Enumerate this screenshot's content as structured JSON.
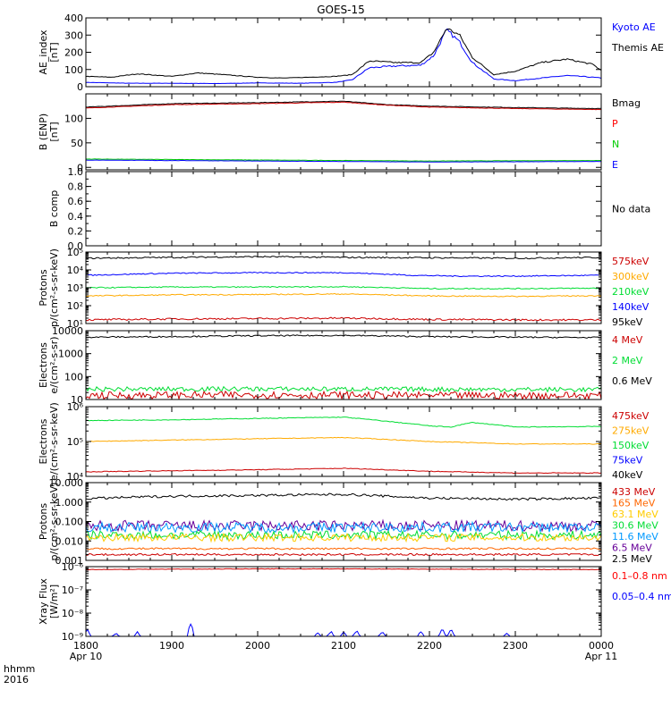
{
  "title": "GOES-15",
  "time_axis": {
    "corner_label_1": "hhmm",
    "corner_label_2": "2016",
    "start_hour": 18,
    "end_hour": 24,
    "ticks": [
      {
        "hour": 18,
        "label": "1800",
        "sub": "Apr 10"
      },
      {
        "hour": 19,
        "label": "1900",
        "sub": ""
      },
      {
        "hour": 20,
        "label": "2000",
        "sub": ""
      },
      {
        "hour": 21,
        "label": "2100",
        "sub": ""
      },
      {
        "hour": 22,
        "label": "2200",
        "sub": ""
      },
      {
        "hour": 23,
        "label": "2300",
        "sub": ""
      },
      {
        "hour": 24,
        "label": "0000",
        "sub": "Apr 11"
      }
    ]
  },
  "chart_data": [
    {
      "type": "line",
      "id": "ae",
      "ylabel": [
        "AE_index",
        "[nT]"
      ],
      "scale": "linear",
      "ylim": [
        0,
        400
      ],
      "yticks": [
        {
          "v": 0,
          "label": "0"
        },
        {
          "v": 100,
          "label": "100"
        },
        {
          "v": 200,
          "label": "200"
        },
        {
          "v": 300,
          "label": "300"
        },
        {
          "v": 400,
          "label": "400"
        }
      ],
      "legend": [
        {
          "text": "Kyoto AE",
          "color": "#0000ff"
        },
        {
          "text": "Themis AE",
          "color": "#000000"
        }
      ],
      "series": [
        {
          "name": "Kyoto AE",
          "color": "#0000ff",
          "jitter": 0.04,
          "x": [
            18.0,
            18.5,
            19.0,
            19.5,
            20.0,
            20.5,
            20.9,
            21.1,
            21.3,
            21.6,
            21.9,
            22.05,
            22.2,
            22.35,
            22.5,
            22.75,
            23.0,
            23.3,
            23.6,
            23.9,
            24.0
          ],
          "y": [
            25,
            20,
            20,
            18,
            22,
            20,
            25,
            40,
            110,
            120,
            125,
            180,
            330,
            260,
            140,
            45,
            35,
            50,
            65,
            55,
            50
          ]
        },
        {
          "name": "Themis AE",
          "color": "#000000",
          "jitter": 0.03,
          "x": [
            18.0,
            18.3,
            18.6,
            19.0,
            19.3,
            19.6,
            20.0,
            20.3,
            20.6,
            20.9,
            21.1,
            21.3,
            21.6,
            21.9,
            22.05,
            22.2,
            22.35,
            22.5,
            22.75,
            23.0,
            23.3,
            23.6,
            23.9,
            24.0
          ],
          "y": [
            60,
            55,
            75,
            60,
            80,
            70,
            55,
            50,
            55,
            60,
            70,
            150,
            140,
            140,
            200,
            340,
            300,
            170,
            70,
            90,
            140,
            160,
            130,
            95
          ]
        }
      ]
    },
    {
      "type": "line",
      "id": "bfield",
      "ylabel": [
        "B (ENP)",
        "[nT]"
      ],
      "scale": "linear",
      "ylim": [
        -5,
        150
      ],
      "yticks": [
        {
          "v": 0,
          "label": "0"
        },
        {
          "v": 50,
          "label": "50"
        },
        {
          "v": 100,
          "label": "100"
        }
      ],
      "legend": [
        {
          "text": "Bmag",
          "color": "#000000"
        },
        {
          "text": "P",
          "color": "#ff0000"
        },
        {
          "text": "N",
          "color": "#00cc00"
        },
        {
          "text": "E",
          "color": "#0000ff"
        }
      ],
      "series": [
        {
          "name": "Bmag",
          "color": "#000000",
          "jitter": 0.004,
          "x": [
            18,
            19,
            20,
            21,
            21.5,
            22,
            23,
            24
          ],
          "y": [
            123,
            130,
            132,
            135,
            128,
            125,
            122,
            120
          ]
        },
        {
          "name": "P",
          "color": "#cc0000",
          "jitter": 0.004,
          "x": [
            18,
            19,
            20,
            21,
            21.5,
            22,
            23,
            24
          ],
          "y": [
            121,
            128,
            130,
            133,
            127,
            123,
            120,
            118
          ]
        },
        {
          "name": "N",
          "color": "#00cc00",
          "jitter": 0.02,
          "x": [
            18,
            20,
            22,
            24
          ],
          "y": [
            17,
            15,
            13,
            14
          ]
        },
        {
          "name": "E",
          "color": "#0000ff",
          "jitter": 0.02,
          "x": [
            18,
            20,
            22,
            24
          ],
          "y": [
            15,
            13,
            11,
            12
          ]
        }
      ]
    },
    {
      "type": "line",
      "id": "bcomp",
      "ylabel": [
        "B comp"
      ],
      "scale": "linear",
      "ylim": [
        0,
        1
      ],
      "yticks": [
        {
          "v": 0,
          "label": "0.0"
        },
        {
          "v": 0.2,
          "label": "0.2"
        },
        {
          "v": 0.4,
          "label": "0.4"
        },
        {
          "v": 0.6,
          "label": "0.6"
        },
        {
          "v": 0.8,
          "label": "0.8"
        },
        {
          "v": 1.0,
          "label": "1.0"
        }
      ],
      "minor_step": 0.1,
      "legend": [
        {
          "text": "No data",
          "color": "#000000"
        }
      ],
      "series": []
    },
    {
      "type": "line",
      "id": "protons_low",
      "ylabel": [
        "Protons",
        "p/(cm²-s-sr-keV)"
      ],
      "scale": "log",
      "ylim": [
        10,
        100000
      ],
      "yticks": [
        {
          "v": 10,
          "label": "10¹"
        },
        {
          "v": 100,
          "label": "10²"
        },
        {
          "v": 1000,
          "label": "10³"
        },
        {
          "v": 10000,
          "label": "10⁴"
        },
        {
          "v": 100000,
          "label": "10⁵"
        }
      ],
      "legend": [
        {
          "text": "575keV",
          "color": "#cc0000"
        },
        {
          "text": "300keV",
          "color": "#ffaa00"
        },
        {
          "text": "210keV",
          "color": "#00dd33"
        },
        {
          "text": "140keV",
          "color": "#0000ff"
        },
        {
          "text": "95keV",
          "color": "#000000"
        }
      ],
      "series": [
        {
          "name": "95keV",
          "color": "#000000",
          "jitter": 0.04,
          "x": [
            18,
            19,
            20,
            21,
            22,
            23,
            24
          ],
          "y": [
            45000,
            50000,
            55000,
            50000,
            48000,
            45000,
            50000
          ]
        },
        {
          "name": "140keV",
          "color": "#0000ff",
          "jitter": 0.03,
          "x": [
            18,
            19,
            20,
            21,
            21.8,
            22.3,
            23,
            24
          ],
          "y": [
            5000,
            6500,
            7000,
            7000,
            5000,
            4500,
            4500,
            5000
          ]
        },
        {
          "name": "210keV",
          "color": "#00dd33",
          "jitter": 0.03,
          "x": [
            18,
            19,
            20,
            21,
            22,
            23,
            24
          ],
          "y": [
            1000,
            1100,
            1100,
            1150,
            900,
            900,
            950
          ]
        },
        {
          "name": "300keV",
          "color": "#ffaa00",
          "jitter": 0.03,
          "x": [
            18,
            19,
            20,
            21,
            22,
            23,
            24
          ],
          "y": [
            350,
            400,
            420,
            450,
            350,
            330,
            360
          ]
        },
        {
          "name": "575keV",
          "color": "#cc0000",
          "jitter": 0.05,
          "x": [
            18,
            19,
            20,
            21,
            22,
            23,
            24
          ],
          "y": [
            16,
            18,
            19,
            20,
            17,
            16,
            16
          ]
        }
      ]
    },
    {
      "type": "line",
      "id": "electrons_mev",
      "ylabel": [
        "Electrons",
        "e/(cm²-s-sr)"
      ],
      "scale": "log",
      "ylim": [
        10,
        10000
      ],
      "yticks": [
        {
          "v": 10,
          "label": "10"
        },
        {
          "v": 100,
          "label": "100"
        },
        {
          "v": 1000,
          "label": "1000"
        },
        {
          "v": 10000,
          "label": "10000"
        }
      ],
      "legend": [
        {
          "text": "4 MeV",
          "color": "#cc0000"
        },
        {
          "text": "2 MeV",
          "color": "#00dd33"
        },
        {
          "text": "0.6 MeV",
          "color": "#000000"
        }
      ],
      "series": [
        {
          "name": "0.6 MeV",
          "color": "#000000",
          "jitter": 0.03,
          "x": [
            18,
            19,
            20,
            21,
            22,
            23,
            24
          ],
          "y": [
            5200,
            5500,
            6000,
            6200,
            5500,
            5200,
            5000
          ]
        },
        {
          "name": "2 MeV",
          "color": "#00dd33",
          "jitter": 0.1,
          "x": [
            18,
            20,
            22,
            24
          ],
          "y": [
            28,
            29,
            28,
            27
          ]
        },
        {
          "name": "4 MeV",
          "color": "#cc0000",
          "jitter": 0.16,
          "x": [
            18,
            20,
            22,
            24
          ],
          "y": [
            15,
            16,
            15,
            15
          ]
        }
      ]
    },
    {
      "type": "line",
      "id": "electrons_kev",
      "ylabel": [
        "Electrons",
        "e/(cm²-s-sr-keV)"
      ],
      "scale": "log",
      "ylim": [
        10000,
        1000000
      ],
      "yticks": [
        {
          "v": 10000,
          "label": "10⁴"
        },
        {
          "v": 100000,
          "label": "10⁵"
        },
        {
          "v": 1000000,
          "label": "10⁶"
        }
      ],
      "legend": [
        {
          "text": "475keV",
          "color": "#cc0000"
        },
        {
          "text": "275keV",
          "color": "#ffaa00"
        },
        {
          "text": "150keV",
          "color": "#00dd33"
        },
        {
          "text": "75keV",
          "color": "#0000ff"
        },
        {
          "text": "40keV",
          "color": "#000000"
        }
      ],
      "series": [
        {
          "name": "150keV",
          "color": "#00dd33",
          "jitter": 0.01,
          "x": [
            18,
            19,
            20,
            21,
            21.5,
            22,
            22.25,
            22.5,
            23,
            24
          ],
          "y": [
            400000,
            420000,
            460000,
            500000,
            380000,
            280000,
            260000,
            350000,
            260000,
            270000
          ]
        },
        {
          "name": "275keV",
          "color": "#ffaa00",
          "jitter": 0.01,
          "x": [
            18,
            19,
            20,
            21,
            22,
            23,
            24
          ],
          "y": [
            100000,
            110000,
            120000,
            130000,
            100000,
            85000,
            85000
          ]
        },
        {
          "name": "475keV",
          "color": "#cc0000",
          "jitter": 0.01,
          "x": [
            18,
            19,
            20,
            21,
            22,
            23,
            24
          ],
          "y": [
            13500,
            14500,
            15500,
            17000,
            14000,
            12500,
            12500
          ]
        }
      ]
    },
    {
      "type": "line",
      "id": "protons_high",
      "ylabel": [
        "Protons",
        "p/(cm²-s-sr-keV)"
      ],
      "scale": "log",
      "ylim": [
        0.001,
        10
      ],
      "yticks": [
        {
          "v": 0.001,
          "label": "0.001"
        },
        {
          "v": 0.01,
          "label": "0.010"
        },
        {
          "v": 0.1,
          "label": "0.100"
        },
        {
          "v": 1,
          "label": "1.000"
        },
        {
          "v": 10,
          "label": "10.000"
        }
      ],
      "legend": [
        {
          "text": "433 MeV",
          "color": "#cc0000"
        },
        {
          "text": "165 MeV",
          "color": "#ff6600"
        },
        {
          "text": "63.1 MeV",
          "color": "#ffcc00"
        },
        {
          "text": "30.6 MeV",
          "color": "#00dd33"
        },
        {
          "text": "11.6 MeV",
          "color": "#0099ff"
        },
        {
          "text": "6.5 MeV",
          "color": "#660099"
        },
        {
          "text": "2.5 MeV",
          "color": "#000000"
        }
      ],
      "series": [
        {
          "name": "2.5 MeV",
          "color": "#000000",
          "jitter": 0.06,
          "x": [
            18,
            19,
            20,
            21,
            21.5,
            22,
            23,
            24
          ],
          "y": [
            1.5,
            2.0,
            2.2,
            2.5,
            2.0,
            1.6,
            1.4,
            1.6
          ]
        },
        {
          "name": "6.5 MeV",
          "color": "#660099",
          "jitter": 0.28,
          "x": [
            18,
            24
          ],
          "y": [
            0.06,
            0.06
          ]
        },
        {
          "name": "11.6 MeV",
          "color": "#0099ff",
          "jitter": 0.26,
          "x": [
            18,
            24
          ],
          "y": [
            0.05,
            0.05
          ]
        },
        {
          "name": "30.6 MeV",
          "color": "#00dd33",
          "jitter": 0.22,
          "x": [
            18,
            24
          ],
          "y": [
            0.02,
            0.02
          ]
        },
        {
          "name": "63.1 MeV",
          "color": "#ffcc00",
          "jitter": 0.2,
          "x": [
            18,
            24
          ],
          "y": [
            0.015,
            0.015
          ]
        },
        {
          "name": "165 MeV",
          "color": "#ff6600",
          "jitter": 0.05,
          "x": [
            18,
            24
          ],
          "y": [
            0.004,
            0.004
          ]
        },
        {
          "name": "433 MeV",
          "color": "#cc0000",
          "jitter": 0.05,
          "x": [
            18,
            24
          ],
          "y": [
            0.002,
            0.002
          ]
        }
      ]
    },
    {
      "type": "line",
      "id": "xray",
      "ylabel": [
        "Xray Flux",
        "[W/m²]"
      ],
      "scale": "log",
      "ylim": [
        1e-09,
        1e-06
      ],
      "yticks": [
        {
          "v": 1e-09,
          "label": "10⁻⁹"
        },
        {
          "v": 1e-08,
          "label": "10⁻⁸"
        },
        {
          "v": 1e-07,
          "label": "10⁻⁷"
        },
        {
          "v": 1e-06,
          "label": "10⁻⁶"
        }
      ],
      "legend": [
        {
          "text": "0.1–0.8 nm",
          "color": "#ff0000"
        },
        {
          "text": "0.05–0.4 nm",
          "color": "#0000ff"
        }
      ],
      "series": [
        {
          "name": "0.1–0.8 nm",
          "color": "#cc0000",
          "jitter": 0.01,
          "x": [
            18,
            19,
            20,
            21,
            22,
            23,
            24
          ],
          "y": [
            7.5e-07,
            7.8e-07,
            8e-07,
            8e-07,
            7.8e-07,
            7.6e-07,
            7.5e-07
          ]
        },
        {
          "name": "0.05–0.4 nm",
          "color": "#0000ff",
          "spiky": true,
          "floor": 1e-09,
          "bursts": [
            {
              "x": 18.02,
              "y": 2.2e-09
            },
            {
              "x": 18.35,
              "y": 1.4e-09
            },
            {
              "x": 18.6,
              "y": 1.6e-09
            },
            {
              "x": 19.22,
              "y": 4.5e-09
            },
            {
              "x": 20.7,
              "y": 1.5e-09
            },
            {
              "x": 20.85,
              "y": 1.8e-09
            },
            {
              "x": 21.0,
              "y": 1.6e-09
            },
            {
              "x": 21.15,
              "y": 1.9e-09
            },
            {
              "x": 21.45,
              "y": 1.7e-09
            },
            {
              "x": 21.9,
              "y": 1.8e-09
            },
            {
              "x": 22.15,
              "y": 2.4e-09
            },
            {
              "x": 22.25,
              "y": 2.2e-09
            },
            {
              "x": 22.9,
              "y": 1.4e-09
            }
          ]
        }
      ]
    }
  ]
}
